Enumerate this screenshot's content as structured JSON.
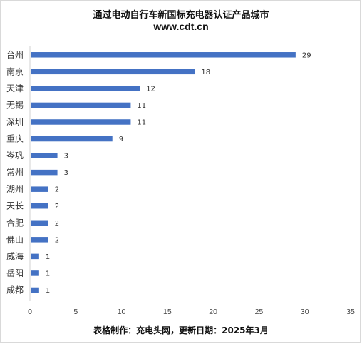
{
  "title": "通过电动自行车新国标充电器认证产品城市",
  "subtitle": "www.cdt.cn",
  "footer": "表格制作：充电头网，更新日期：2025年3月",
  "bar_color": "#4472c4",
  "chart_data": {
    "type": "bar",
    "orientation": "horizontal",
    "title": "通过电动自行车新国标充电器认证产品城市",
    "subtitle": "www.cdt.cn",
    "categories": [
      "台州",
      "南京",
      "天津",
      "无锡",
      "深圳",
      "重庆",
      "岑巩",
      "常州",
      "湖州",
      "天长",
      "合肥",
      "佛山",
      "威海",
      "岳阳",
      "成都"
    ],
    "values": [
      29,
      18,
      12,
      11,
      11,
      9,
      3,
      3,
      2,
      2,
      2,
      2,
      1,
      1,
      1
    ],
    "xlim": [
      0,
      35
    ],
    "xticks": [
      0,
      5,
      10,
      15,
      20,
      25,
      30,
      35
    ],
    "grid": false,
    "data_labels": true,
    "xlabel": "",
    "ylabel": ""
  }
}
